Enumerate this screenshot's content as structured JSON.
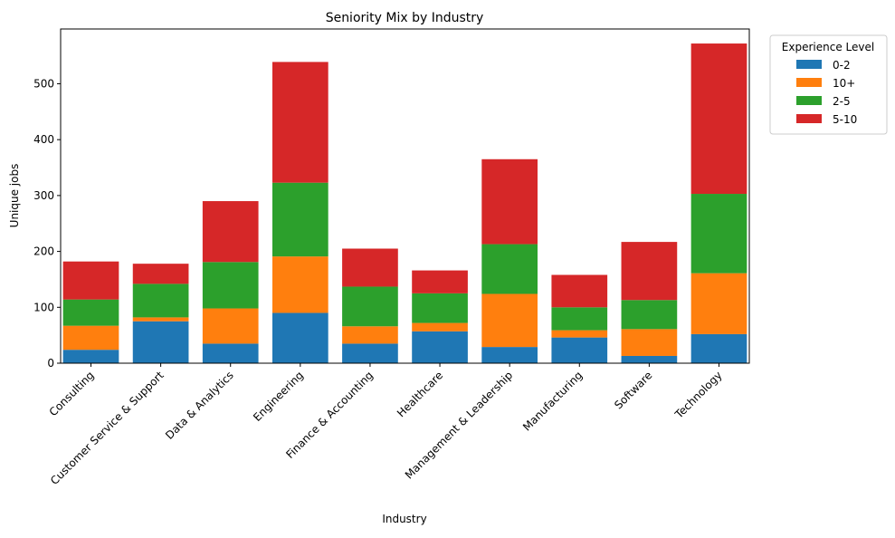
{
  "chart_data": {
    "type": "bar",
    "stacked": true,
    "title": "Seniority Mix by Industry",
    "xlabel": "Industry",
    "ylabel": "Unique jobs",
    "ylim": [
      0,
      598
    ],
    "yticks": [
      0,
      100,
      200,
      300,
      400,
      500
    ],
    "categories": [
      "Consulting",
      "Customer Service & Support",
      "Data & Analytics",
      "Engineering",
      "Finance & Accounting",
      "Healthcare",
      "Management & Leadership",
      "Manufacturing",
      "Software",
      "Technology"
    ],
    "series": [
      {
        "name": "0-2",
        "color": "#1f77b4",
        "values": [
          24,
          75,
          35,
          90,
          35,
          57,
          29,
          46,
          13,
          52
        ]
      },
      {
        "name": "10+",
        "color": "#ff7f0e",
        "values": [
          43,
          7,
          63,
          101,
          31,
          15,
          95,
          13,
          48,
          109
        ]
      },
      {
        "name": "2-5",
        "color": "#2ca02c",
        "values": [
          47,
          60,
          83,
          132,
          71,
          53,
          89,
          41,
          52,
          142
        ]
      },
      {
        "name": "5-10",
        "color": "#d62728",
        "values": [
          68,
          36,
          109,
          216,
          68,
          41,
          152,
          58,
          104,
          269
        ]
      }
    ],
    "legend": {
      "title": "Experience Level",
      "position": "outside-top-right"
    },
    "grid": false
  }
}
